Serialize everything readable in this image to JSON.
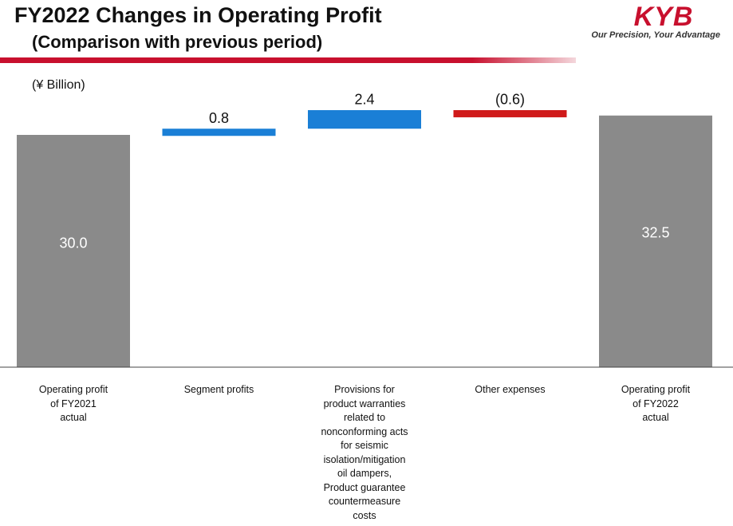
{
  "header": {
    "title": "FY2022 Changes in Operating Profit",
    "subtitle": "(Comparison with previous period)"
  },
  "brand": {
    "name": "KYB",
    "tagline": "Our Precision, Your Advantage",
    "color": "#c8102e"
  },
  "chart_data": {
    "type": "bar",
    "subtype": "waterfall",
    "unit": "(¥ Billion)",
    "categories": [
      "Operating profit\nof FY2021\nactual",
      "Segment profits",
      "Provisions for\nproduct warranties\nrelated to\nnonconforming acts\nfor seismic\nisolation/mitigation\noil dampers,\nProduct guarantee\ncountermeasure\ncosts",
      "Other expenses",
      "Operating profit\nof FY2022\nactual"
    ],
    "values": [
      30.0,
      0.8,
      2.4,
      -0.6,
      32.5
    ],
    "labels": [
      "30.0",
      "0.8",
      "2.4",
      "(0.6)",
      "32.5"
    ],
    "kinds": [
      "total",
      "increase",
      "increase",
      "decrease",
      "total"
    ],
    "ylim": [
      0,
      33
    ],
    "colors": {
      "total": "#8a8a8a",
      "increase": "#1a7fd6",
      "decrease": "#d01a1a"
    },
    "grid": false,
    "legend": "none"
  }
}
